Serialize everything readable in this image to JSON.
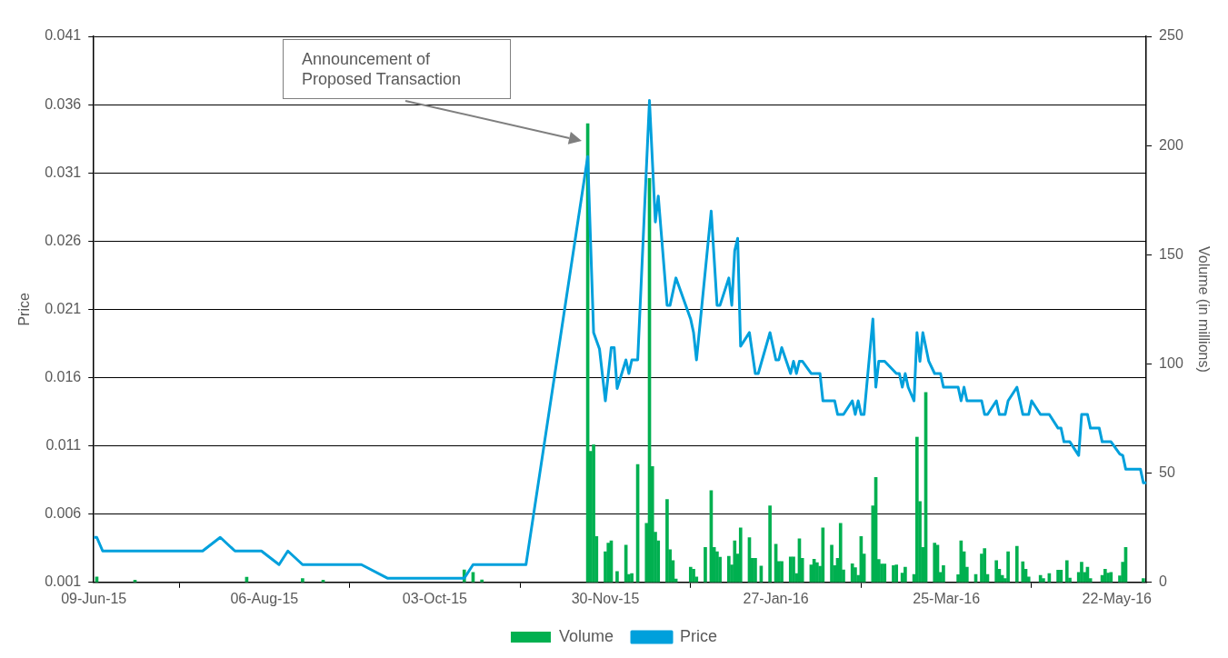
{
  "chart_data": {
    "type": "bar",
    "ylabel": "Price",
    "y2label": "Volume (in millions)",
    "xlim": [
      "2015-06-09",
      "2016-06-01"
    ],
    "xticks": [
      {
        "value": "2015-06-09",
        "label": "09-Jun-15"
      },
      {
        "value": "2015-08-06",
        "label": "06-Aug-15"
      },
      {
        "value": "2015-10-03",
        "label": "03-Oct-15"
      },
      {
        "value": "2015-11-30",
        "label": "30-Nov-15"
      },
      {
        "value": "2016-01-27",
        "label": "27-Jan-16"
      },
      {
        "value": "2016-03-25",
        "label": "25-Mar-16"
      },
      {
        "value": "2016-05-22",
        "label": "22-May-16"
      }
    ],
    "ylim": [
      0.001,
      0.041
    ],
    "yticks": [
      0.001,
      0.006,
      0.011,
      0.016,
      0.021,
      0.026,
      0.031,
      0.036,
      0.041
    ],
    "y2lim": [
      0,
      250
    ],
    "y2ticks": [
      0,
      50,
      100,
      150,
      200,
      250
    ],
    "grid": "y",
    "legend": "bottom",
    "annotations": [
      "Announcement of Proposed Transaction"
    ],
    "series": [
      {
        "name": "Volume",
        "axis": "y2",
        "color": "#00b050",
        "x": [
          "2015-06-10",
          "2015-06-23",
          "2015-07-31",
          "2015-08-19",
          "2015-08-26",
          "2015-10-13",
          "2015-10-16",
          "2015-10-19",
          "2015-11-24",
          "2015-11-25",
          "2015-11-26",
          "2015-11-27",
          "2015-11-30",
          "2015-12-01",
          "2015-12-02",
          "2015-12-04",
          "2015-12-07",
          "2015-12-08",
          "2015-12-09",
          "2015-12-11",
          "2015-12-14",
          "2015-12-15",
          "2015-12-16",
          "2015-12-17",
          "2015-12-18",
          "2015-12-21",
          "2015-12-22",
          "2015-12-23",
          "2015-12-24",
          "2015-12-29",
          "2015-12-30",
          "2015-12-31",
          "2016-01-03",
          "2016-01-05",
          "2016-01-06",
          "2016-01-07",
          "2016-01-08",
          "2016-01-11",
          "2016-01-12",
          "2016-01-13",
          "2016-01-14",
          "2016-01-15",
          "2016-01-18",
          "2016-01-19",
          "2016-01-20",
          "2016-01-22",
          "2016-01-25",
          "2016-01-27",
          "2016-01-28",
          "2016-01-29",
          "2016-02-01",
          "2016-02-02",
          "2016-02-03",
          "2016-02-04",
          "2016-02-05",
          "2016-02-08",
          "2016-02-09",
          "2016-02-10",
          "2016-02-11",
          "2016-02-12",
          "2016-02-15",
          "2016-02-16",
          "2016-02-17",
          "2016-02-18",
          "2016-02-19",
          "2016-02-22",
          "2016-02-23",
          "2016-02-24",
          "2016-02-25",
          "2016-02-26",
          "2016-02-29",
          "2016-03-01",
          "2016-03-02",
          "2016-03-03",
          "2016-03-04",
          "2016-03-07",
          "2016-03-08",
          "2016-03-10",
          "2016-03-11",
          "2016-03-14",
          "2016-03-15",
          "2016-03-16",
          "2016-03-17",
          "2016-03-18",
          "2016-03-21",
          "2016-03-22",
          "2016-03-23",
          "2016-03-24",
          "2016-03-29",
          "2016-03-30",
          "2016-03-31",
          "2016-04-01",
          "2016-04-04",
          "2016-04-06",
          "2016-04-07",
          "2016-04-08",
          "2016-04-11",
          "2016-04-12",
          "2016-04-13",
          "2016-04-14",
          "2016-04-15",
          "2016-04-18",
          "2016-04-20",
          "2016-04-21",
          "2016-04-22",
          "2016-04-26",
          "2016-04-27",
          "2016-04-29",
          "2016-05-02",
          "2016-05-03",
          "2016-05-05",
          "2016-05-06",
          "2016-05-09",
          "2016-05-10",
          "2016-05-11",
          "2016-05-12",
          "2016-05-13",
          "2016-05-17",
          "2016-05-18",
          "2016-05-19",
          "2016-05-20",
          "2016-05-23",
          "2016-05-24",
          "2016-05-25",
          "2016-05-31"
        ],
        "values": [
          2.5,
          1,
          2.4,
          1.8,
          1,
          5.7,
          4.6,
          1.1,
          210,
          60,
          63,
          21,
          14,
          18,
          19,
          5,
          17,
          3.6,
          4,
          54,
          27,
          185,
          53,
          23,
          19,
          38,
          15,
          10,
          1.5,
          7,
          6,
          2.5,
          16,
          42,
          16,
          14,
          11.5,
          12,
          8,
          19,
          13,
          25,
          20.5,
          11,
          11,
          7.5,
          35,
          17.5,
          9.6,
          9.6,
          11.6,
          11.6,
          4,
          20,
          11,
          8,
          10.6,
          9,
          7.4,
          25,
          17,
          7.7,
          11,
          27,
          5.7,
          8.5,
          6.7,
          3.2,
          21,
          13,
          35,
          48,
          10.5,
          8.4,
          8.4,
          7.7,
          8,
          4.3,
          7,
          3.6,
          66.5,
          37,
          16,
          87,
          18,
          17,
          4.6,
          7.7,
          3.5,
          19,
          14,
          7,
          3.6,
          13,
          15.5,
          3.6,
          10,
          6,
          3.2,
          1.8,
          14,
          16.5,
          9.5,
          6,
          2.5,
          3.2,
          1.8,
          4,
          5.6,
          5.6,
          10,
          2,
          4.6,
          9.2,
          4.6,
          7,
          1.8,
          3.2,
          6,
          4.3,
          4.6,
          3,
          9.2,
          16,
          1.8
        ]
      },
      {
        "name": "Price",
        "type": "line",
        "color": "#00a0dc",
        "x": [
          "2015-06-09",
          "2015-06-10",
          "2015-06-12",
          "2015-07-16",
          "2015-07-22",
          "2015-07-27",
          "2015-08-05",
          "2015-08-11",
          "2015-08-14",
          "2015-08-19",
          "2015-09-08",
          "2015-09-17",
          "2015-10-13",
          "2015-10-16",
          "2015-11-03",
          "2015-11-24",
          "2015-11-26",
          "2015-11-28",
          "2015-11-30",
          "2015-12-02",
          "2015-12-03",
          "2015-12-04",
          "2015-12-07",
          "2015-12-08",
          "2015-12-09",
          "2015-12-11",
          "2015-12-15",
          "2015-12-17",
          "2015-12-18",
          "2015-12-21",
          "2015-12-22",
          "2015-12-24",
          "2015-12-29",
          "2015-12-30",
          "2015-12-31",
          "2016-01-05",
          "2016-01-07",
          "2016-01-08",
          "2016-01-11",
          "2016-01-12",
          "2016-01-13",
          "2016-01-14",
          "2016-01-15",
          "2016-01-18",
          "2016-01-20",
          "2016-01-21",
          "2016-01-25",
          "2016-01-27",
          "2016-01-28",
          "2016-01-29",
          "2016-02-01",
          "2016-02-02",
          "2016-02-03",
          "2016-02-04",
          "2016-02-05",
          "2016-02-08",
          "2016-02-11",
          "2016-02-12",
          "2016-02-16",
          "2016-02-17",
          "2016-02-19",
          "2016-02-22",
          "2016-02-23",
          "2016-02-24",
          "2016-02-25",
          "2016-02-26",
          "2016-02-29",
          "2016-03-01",
          "2016-03-02",
          "2016-03-04",
          "2016-03-08",
          "2016-03-09",
          "2016-03-10",
          "2016-03-11",
          "2016-03-12",
          "2016-03-14",
          "2016-03-15",
          "2016-03-16",
          "2016-03-17",
          "2016-03-19",
          "2016-03-21",
          "2016-03-23",
          "2016-03-24",
          "2016-03-29",
          "2016-03-30",
          "2016-03-31",
          "2016-04-01",
          "2016-04-06",
          "2016-04-07",
          "2016-04-08",
          "2016-04-11",
          "2016-04-12",
          "2016-04-14",
          "2016-04-15",
          "2016-04-18",
          "2016-04-20",
          "2016-04-22",
          "2016-04-23",
          "2016-04-26",
          "2016-04-29",
          "2016-05-02",
          "2016-05-03",
          "2016-05-04",
          "2016-05-06",
          "2016-05-09",
          "2016-05-10",
          "2016-05-12",
          "2016-05-13",
          "2016-05-16",
          "2016-05-17",
          "2016-05-20",
          "2016-05-23",
          "2016-05-24",
          "2016-05-25",
          "2016-05-30",
          "2016-05-31",
          "2016-06-01"
        ],
        "values": [
          0.0043,
          0.0043,
          0.0033,
          0.0033,
          0.0043,
          0.0033,
          0.0033,
          0.0023,
          0.0033,
          0.0023,
          0.0023,
          0.0013,
          0.0013,
          0.0023,
          0.0023,
          0.0322,
          0.0193,
          0.0181,
          0.0143,
          0.0182,
          0.0182,
          0.0152,
          0.0173,
          0.0163,
          0.0173,
          0.0173,
          0.0363,
          0.0274,
          0.0293,
          0.0213,
          0.0213,
          0.0233,
          0.0203,
          0.0193,
          0.0173,
          0.0282,
          0.0213,
          0.0213,
          0.0233,
          0.0213,
          0.0253,
          0.0262,
          0.0183,
          0.0193,
          0.0163,
          0.0163,
          0.0193,
          0.0173,
          0.0173,
          0.0182,
          0.0163,
          0.0172,
          0.0163,
          0.0172,
          0.0172,
          0.0163,
          0.0163,
          0.0143,
          0.0143,
          0.0133,
          0.0133,
          0.0143,
          0.0133,
          0.0143,
          0.0133,
          0.0133,
          0.0203,
          0.0153,
          0.0172,
          0.0172,
          0.0163,
          0.0163,
          0.0153,
          0.0163,
          0.0153,
          0.0143,
          0.0193,
          0.0172,
          0.0193,
          0.0172,
          0.0163,
          0.0163,
          0.0153,
          0.0153,
          0.0143,
          0.0153,
          0.0143,
          0.0143,
          0.0133,
          0.0133,
          0.0143,
          0.0133,
          0.0133,
          0.0143,
          0.0153,
          0.0133,
          0.0133,
          0.0143,
          0.0133,
          0.0133,
          0.0123,
          0.0123,
          0.0113,
          0.0113,
          0.0103,
          0.0133,
          0.0133,
          0.0123,
          0.0123,
          0.0113,
          0.0113,
          0.0104,
          0.0103,
          0.0093,
          0.0093,
          0.0083,
          0.0083
        ]
      }
    ]
  }
}
